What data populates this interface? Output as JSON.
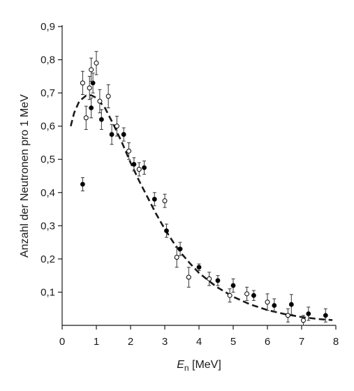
{
  "chart_data": {
    "type": "scatter",
    "title": "",
    "xlabel_italic": "E",
    "xlabel_sub": "n",
    "xlabel_unit": " [MeV]",
    "ylabel": "Anzahl der Neutronen pro 1 MeV",
    "xlim": [
      0,
      8
    ],
    "ylim": [
      0,
      0.9
    ],
    "x_ticks": [
      0,
      1,
      2,
      3,
      4,
      5,
      6,
      7,
      8
    ],
    "x_tick_labels": [
      "0",
      "1",
      "2",
      "3",
      "4",
      "5",
      "6",
      "7",
      "8"
    ],
    "y_ticks": [
      0.1,
      0.2,
      0.3,
      0.4,
      0.5,
      0.6,
      0.7,
      0.8,
      0.9
    ],
    "y_tick_labels": [
      "0,1",
      "0,2",
      "0,3",
      "0,4",
      "0,5",
      "0,6",
      "0,7",
      "0,8",
      "0,9"
    ],
    "grid": false,
    "legend": "none",
    "series": [
      {
        "marker": "filled-circle",
        "color": "#000000",
        "points": [
          {
            "x": 0.6,
            "y": 0.425,
            "err": 0.02
          },
          {
            "x": 0.85,
            "y": 0.655,
            "err": 0.03
          },
          {
            "x": 0.9,
            "y": 0.73,
            "err": 0.03
          },
          {
            "x": 1.15,
            "y": 0.62,
            "err": 0.03
          },
          {
            "x": 1.45,
            "y": 0.575,
            "err": 0.03
          },
          {
            "x": 1.8,
            "y": 0.575,
            "err": 0.02
          },
          {
            "x": 2.1,
            "y": 0.485,
            "err": 0.02
          },
          {
            "x": 2.4,
            "y": 0.475,
            "err": 0.02
          },
          {
            "x": 2.7,
            "y": 0.38,
            "err": 0.02
          },
          {
            "x": 3.05,
            "y": 0.285,
            "err": 0.02
          },
          {
            "x": 3.45,
            "y": 0.23,
            "err": 0.02
          },
          {
            "x": 4.0,
            "y": 0.175,
            "err": 0.01
          },
          {
            "x": 4.55,
            "y": 0.135,
            "err": 0.015
          },
          {
            "x": 5.0,
            "y": 0.12,
            "err": 0.02
          },
          {
            "x": 5.6,
            "y": 0.09,
            "err": 0.015
          },
          {
            "x": 6.2,
            "y": 0.06,
            "err": 0.02
          },
          {
            "x": 6.7,
            "y": 0.063,
            "err": 0.03
          },
          {
            "x": 7.2,
            "y": 0.035,
            "err": 0.02
          },
          {
            "x": 7.7,
            "y": 0.03,
            "err": 0.02
          }
        ]
      },
      {
        "marker": "open-circle",
        "color": "#000000",
        "points": [
          {
            "x": 0.6,
            "y": 0.73,
            "err": 0.035
          },
          {
            "x": 0.7,
            "y": 0.625,
            "err": 0.035
          },
          {
            "x": 0.8,
            "y": 0.715,
            "err": 0.035
          },
          {
            "x": 0.85,
            "y": 0.77,
            "err": 0.035
          },
          {
            "x": 1.0,
            "y": 0.79,
            "err": 0.035
          },
          {
            "x": 1.1,
            "y": 0.675,
            "err": 0.035
          },
          {
            "x": 1.35,
            "y": 0.69,
            "err": 0.035
          },
          {
            "x": 1.6,
            "y": 0.6,
            "err": 0.03
          },
          {
            "x": 1.95,
            "y": 0.525,
            "err": 0.025
          },
          {
            "x": 2.25,
            "y": 0.47,
            "err": 0.02
          },
          {
            "x": 3.0,
            "y": 0.375,
            "err": 0.02
          },
          {
            "x": 3.35,
            "y": 0.205,
            "err": 0.03
          },
          {
            "x": 3.7,
            "y": 0.145,
            "err": 0.03
          },
          {
            "x": 4.3,
            "y": 0.14,
            "err": 0.02
          },
          {
            "x": 4.9,
            "y": 0.09,
            "err": 0.02
          },
          {
            "x": 5.4,
            "y": 0.095,
            "err": 0.02
          },
          {
            "x": 6.0,
            "y": 0.07,
            "err": 0.025
          },
          {
            "x": 6.6,
            "y": 0.03,
            "err": 0.02
          },
          {
            "x": 7.05,
            "y": 0.015,
            "err": 0.015
          }
        ]
      }
    ],
    "fit_curve": {
      "style": "dashed",
      "color": "#000000",
      "points": [
        [
          0.25,
          0.6
        ],
        [
          0.35,
          0.64
        ],
        [
          0.5,
          0.675
        ],
        [
          0.7,
          0.692
        ],
        [
          0.85,
          0.693
        ],
        [
          1.0,
          0.685
        ],
        [
          1.25,
          0.655
        ],
        [
          1.5,
          0.605
        ],
        [
          1.75,
          0.55
        ],
        [
          2.0,
          0.49
        ],
        [
          2.25,
          0.435
        ],
        [
          2.5,
          0.385
        ],
        [
          2.75,
          0.335
        ],
        [
          3.0,
          0.29
        ],
        [
          3.25,
          0.25
        ],
        [
          3.5,
          0.215
        ],
        [
          3.75,
          0.185
        ],
        [
          4.0,
          0.158
        ],
        [
          4.5,
          0.117
        ],
        [
          5.0,
          0.086
        ],
        [
          5.5,
          0.063
        ],
        [
          6.0,
          0.046
        ],
        [
          6.5,
          0.034
        ],
        [
          7.0,
          0.025
        ],
        [
          7.5,
          0.019
        ],
        [
          7.9,
          0.016
        ]
      ]
    }
  }
}
